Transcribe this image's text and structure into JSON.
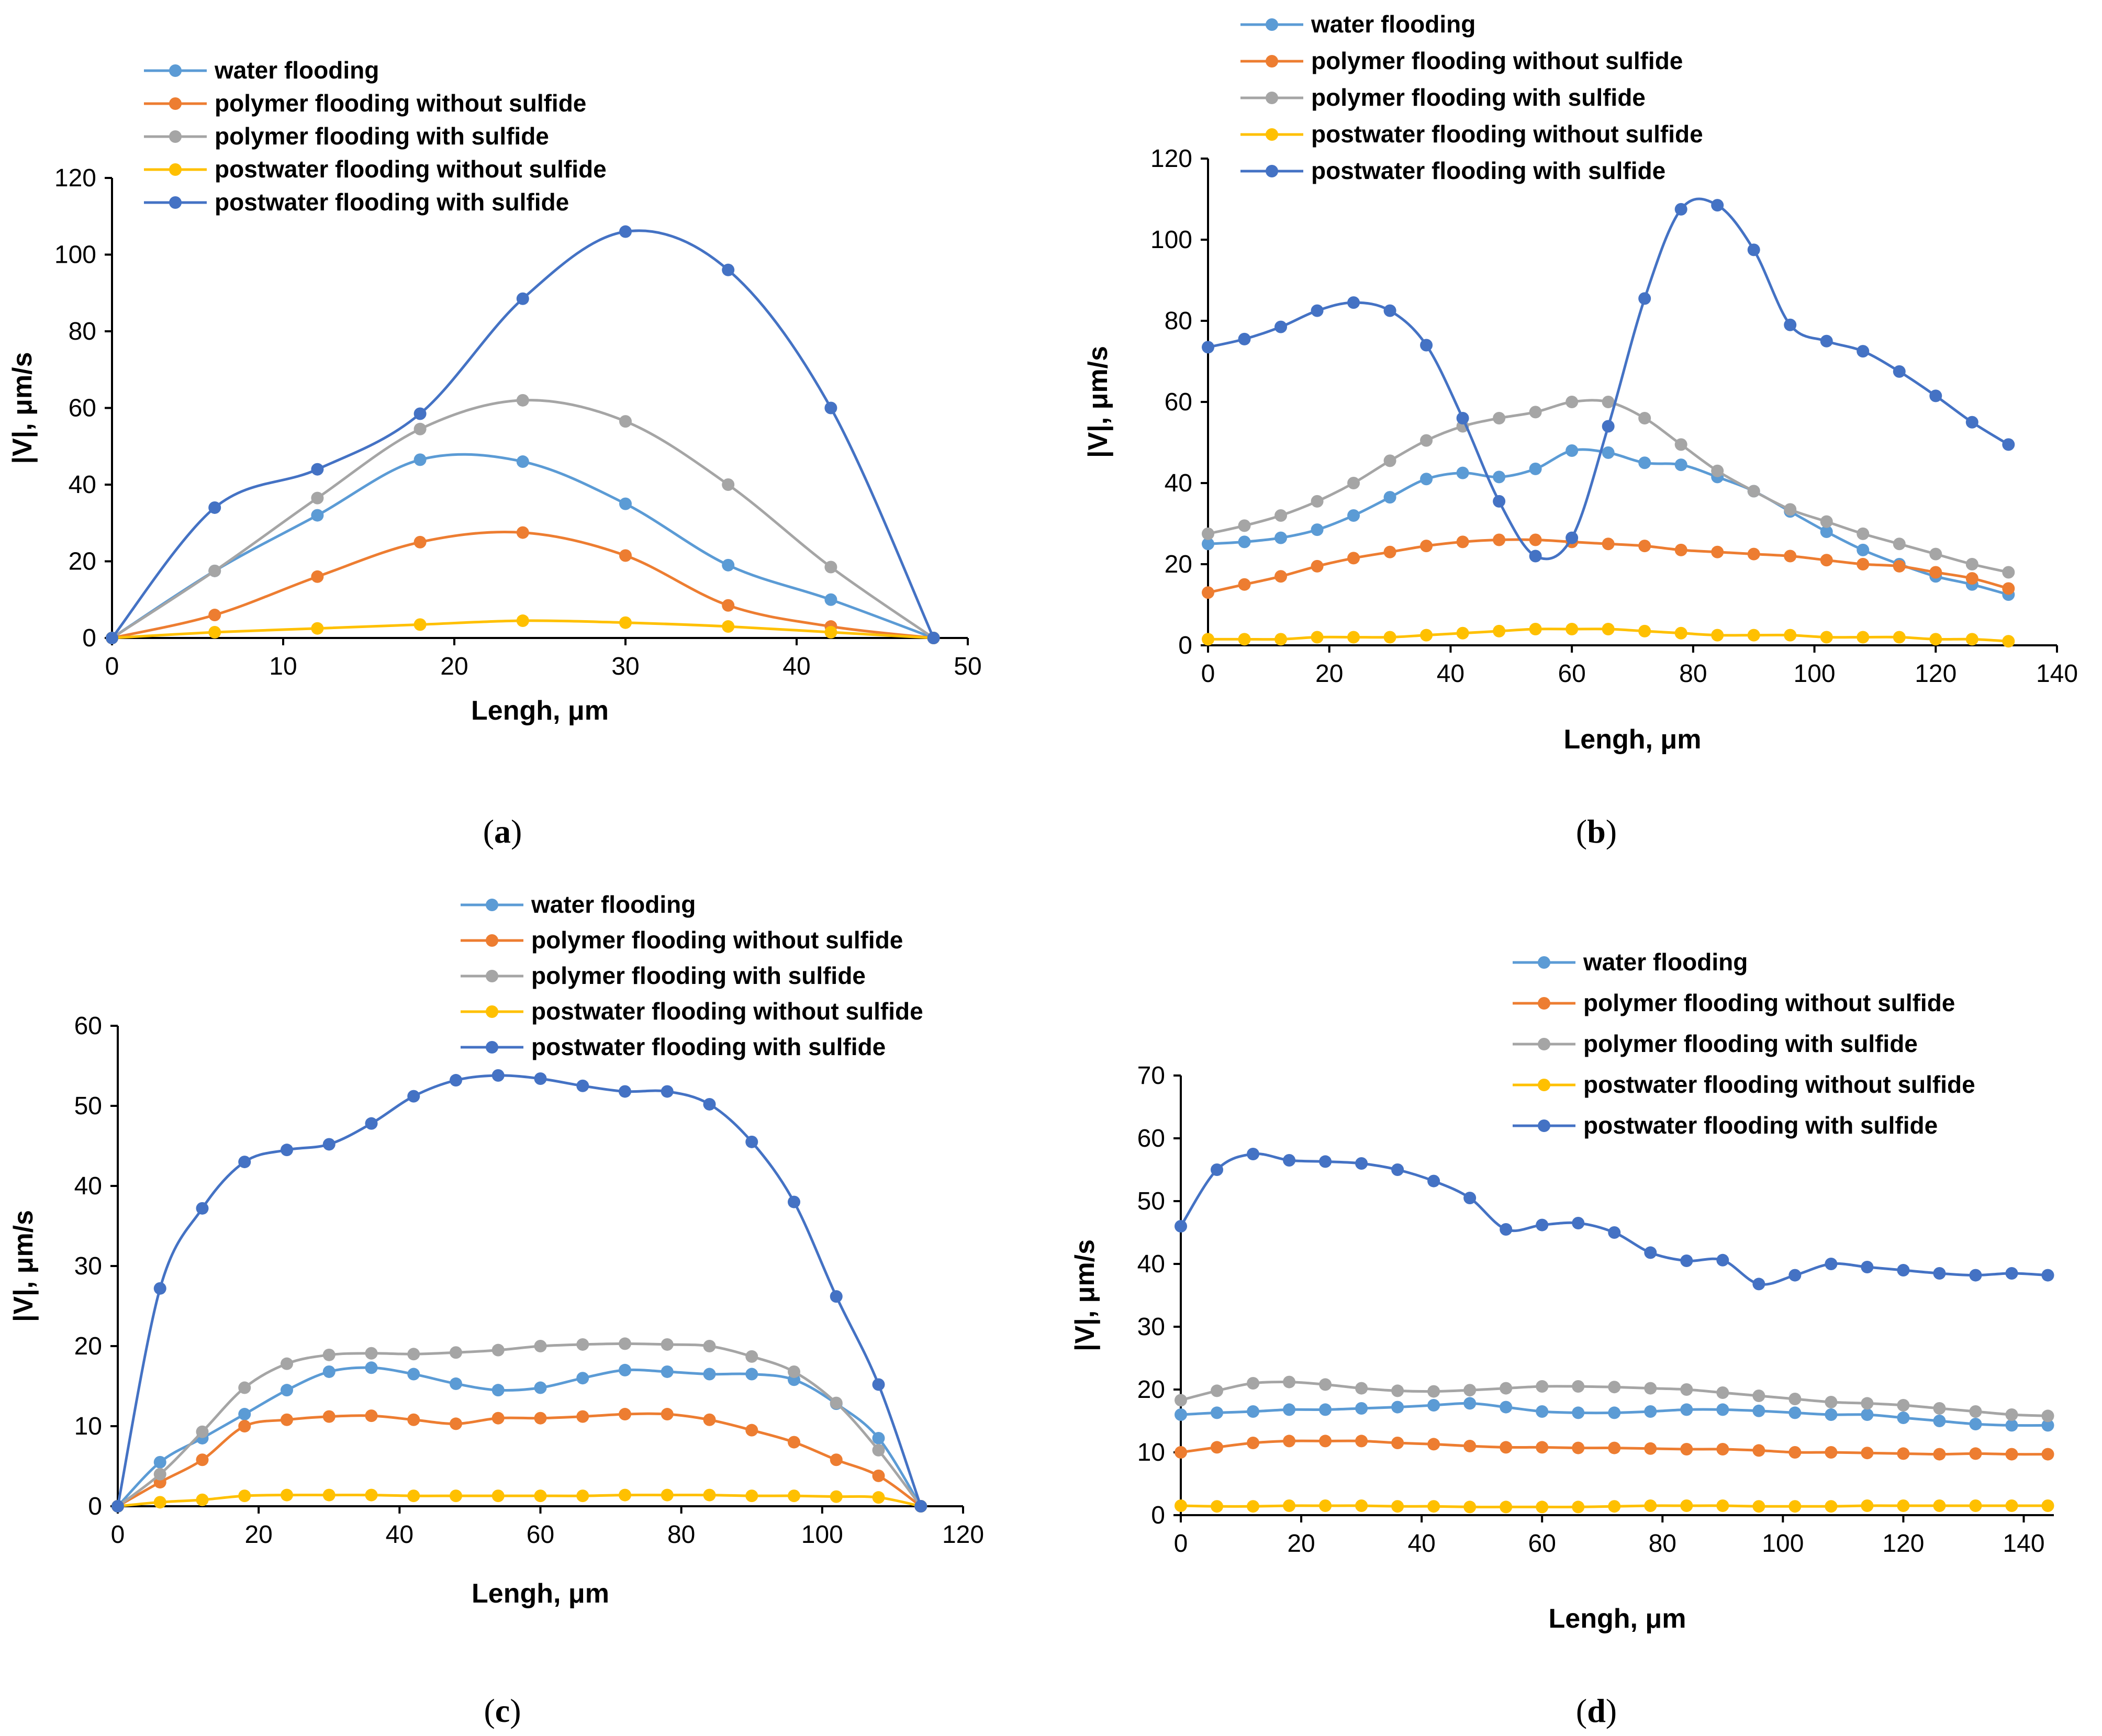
{
  "colors": {
    "water flooding": "#5B9BD5",
    "polymer flooding without sulfide": "#ED7D31",
    "polymer flooding with sulfide": "#A5A5A5",
    "postwater flooding without sulfide": "#FFC000",
    "postwater flooding with sulfide": "#4472C4"
  },
  "chart_data": [
    {
      "panel": "a",
      "type": "line",
      "xlabel": "Lengh, μm",
      "ylabel": "|V|, μm/s",
      "xlim": [
        0,
        50
      ],
      "ylim": [
        0,
        120
      ],
      "xticks": [
        0,
        10,
        20,
        30,
        40,
        50
      ],
      "yticks": [
        0,
        20,
        40,
        60,
        80,
        100,
        120
      ],
      "x": [
        0,
        6,
        12,
        18,
        24,
        30,
        36,
        42,
        48
      ],
      "series": [
        {
          "name": "water flooding",
          "values": [
            0,
            17.5,
            32,
            46.5,
            46,
            35,
            19,
            10,
            0
          ]
        },
        {
          "name": "polymer flooding without sulfide",
          "values": [
            0,
            6,
            16,
            25,
            27.5,
            21.5,
            8.5,
            3,
            0
          ]
        },
        {
          "name": "polymer flooding with sulfide",
          "values": [
            0,
            17.5,
            36.5,
            54.5,
            62,
            56.5,
            40,
            18.5,
            0
          ]
        },
        {
          "name": "postwater flooding without sulfide",
          "values": [
            0,
            1.5,
            2.5,
            3.5,
            4.5,
            4,
            3,
            1.5,
            0
          ]
        },
        {
          "name": "postwater flooding with sulfide",
          "values": [
            0,
            34,
            44,
            58.5,
            88.5,
            106,
            96,
            60,
            0
          ]
        }
      ]
    },
    {
      "panel": "b",
      "type": "line",
      "xlabel": "Lengh, μm",
      "ylabel": "|V|, μm/s",
      "xlim": [
        0,
        140
      ],
      "ylim": [
        0,
        120
      ],
      "xticks": [
        0,
        20,
        40,
        60,
        80,
        100,
        120,
        140
      ],
      "yticks": [
        0,
        20,
        40,
        60,
        80,
        100,
        120
      ],
      "x": [
        0,
        6,
        12,
        18,
        24,
        30,
        36,
        42,
        48,
        54,
        60,
        66,
        72,
        78,
        84,
        90,
        96,
        102,
        108,
        114,
        120,
        126,
        132
      ],
      "series": [
        {
          "name": "water flooding",
          "values": [
            25,
            25.5,
            26.5,
            28.5,
            32,
            36.5,
            41,
            42.5,
            41.5,
            43.5,
            48,
            47.5,
            45,
            44.5,
            41.5,
            38,
            33,
            28,
            23.5,
            20,
            17,
            15,
            12.5
          ]
        },
        {
          "name": "polymer flooding without sulfide",
          "values": [
            13,
            15,
            17,
            19.5,
            21.5,
            23,
            24.5,
            25.5,
            26,
            26,
            25.5,
            25,
            24.5,
            23.5,
            23,
            22.5,
            22,
            21,
            20,
            19.5,
            18,
            16.5,
            14
          ]
        },
        {
          "name": "polymer flooding with sulfide",
          "values": [
            27.5,
            29.5,
            32,
            35.5,
            40,
            45.5,
            50.5,
            54,
            56,
            57.5,
            60,
            60,
            56,
            49.5,
            43,
            38,
            33.5,
            30.5,
            27.5,
            25,
            22.5,
            20,
            18
          ]
        },
        {
          "name": "postwater flooding without sulfide",
          "values": [
            1.5,
            1.5,
            1.5,
            2,
            2,
            2,
            2.5,
            3,
            3.5,
            4,
            4,
            4,
            3.5,
            3,
            2.5,
            2.5,
            2.5,
            2,
            2,
            2,
            1.5,
            1.5,
            1
          ]
        },
        {
          "name": "postwater flooding with sulfide",
          "values": [
            73.5,
            75.5,
            78.5,
            82.5,
            84.5,
            82.5,
            74,
            56,
            35.5,
            22,
            26.5,
            54,
            85.5,
            107.5,
            108.5,
            97.5,
            79,
            75,
            72.5,
            67.5,
            61.5,
            55,
            49.5
          ]
        }
      ]
    },
    {
      "panel": "c",
      "type": "line",
      "xlabel": "Lengh, μm",
      "ylabel": "|V|, μm/s",
      "xlim": [
        0,
        120
      ],
      "ylim": [
        0,
        60
      ],
      "xticks": [
        0,
        20,
        40,
        60,
        80,
        100,
        120
      ],
      "yticks": [
        0,
        10,
        20,
        30,
        40,
        50,
        60
      ],
      "x": [
        0,
        6,
        12,
        18,
        24,
        30,
        36,
        42,
        48,
        54,
        60,
        66,
        72,
        78,
        84,
        90,
        96,
        102,
        108,
        114
      ],
      "series": [
        {
          "name": "water flooding",
          "values": [
            0,
            5.5,
            8.5,
            11.5,
            14.5,
            16.8,
            17.3,
            16.5,
            15.3,
            14.5,
            14.8,
            16,
            17,
            16.8,
            16.5,
            16.5,
            15.8,
            12.8,
            8.5,
            0
          ]
        },
        {
          "name": "polymer flooding without sulfide",
          "values": [
            0,
            3,
            5.8,
            10,
            10.8,
            11.2,
            11.3,
            10.8,
            10.3,
            11,
            11,
            11.2,
            11.5,
            11.5,
            10.8,
            9.5,
            8,
            5.8,
            3.8,
            0
          ]
        },
        {
          "name": "polymer flooding with sulfide",
          "values": [
            0,
            4,
            9.3,
            14.8,
            17.8,
            18.9,
            19.1,
            19,
            19.2,
            19.5,
            20,
            20.2,
            20.3,
            20.2,
            20,
            18.7,
            16.8,
            12.9,
            7,
            0
          ]
        },
        {
          "name": "postwater flooding without sulfide",
          "values": [
            0,
            0.5,
            0.8,
            1.3,
            1.4,
            1.4,
            1.4,
            1.3,
            1.3,
            1.3,
            1.3,
            1.3,
            1.4,
            1.4,
            1.4,
            1.3,
            1.3,
            1.2,
            1.1,
            0
          ]
        },
        {
          "name": "postwater flooding with sulfide",
          "values": [
            0,
            27.2,
            37.2,
            43,
            44.5,
            45.2,
            47.8,
            51.2,
            53.2,
            53.8,
            53.4,
            52.5,
            51.8,
            51.8,
            50.2,
            45.5,
            38,
            26.2,
            15.2,
            0
          ]
        }
      ]
    },
    {
      "panel": "d",
      "type": "line",
      "xlabel": "Lengh, μm",
      "ylabel": "|V|, μm/s",
      "xlim": [
        0,
        145
      ],
      "ylim": [
        0,
        70
      ],
      "xticks": [
        0,
        20,
        40,
        60,
        80,
        100,
        120,
        140
      ],
      "yticks": [
        0,
        10,
        20,
        30,
        40,
        50,
        60,
        70
      ],
      "x": [
        0,
        6,
        12,
        18,
        24,
        30,
        36,
        42,
        48,
        54,
        60,
        66,
        72,
        78,
        84,
        90,
        96,
        102,
        108,
        114,
        120,
        126,
        132,
        138,
        144
      ],
      "series": [
        {
          "name": "water flooding",
          "values": [
            16,
            16.3,
            16.5,
            16.8,
            16.8,
            17,
            17.2,
            17.5,
            17.8,
            17.2,
            16.5,
            16.3,
            16.3,
            16.5,
            16.8,
            16.8,
            16.6,
            16.3,
            16,
            16,
            15.5,
            15,
            14.5,
            14.3,
            14.3
          ]
        },
        {
          "name": "polymer flooding without sulfide",
          "values": [
            10,
            10.8,
            11.5,
            11.8,
            11.8,
            11.8,
            11.5,
            11.3,
            11,
            10.8,
            10.8,
            10.7,
            10.7,
            10.6,
            10.5,
            10.5,
            10.3,
            10,
            10,
            9.9,
            9.8,
            9.7,
            9.8,
            9.7,
            9.7
          ]
        },
        {
          "name": "polymer flooding with sulfide",
          "values": [
            18.3,
            19.8,
            21,
            21.2,
            20.8,
            20.2,
            19.8,
            19.7,
            19.9,
            20.2,
            20.5,
            20.5,
            20.4,
            20.2,
            20,
            19.5,
            19,
            18.5,
            18,
            17.8,
            17.5,
            17,
            16.5,
            16,
            15.8
          ]
        },
        {
          "name": "postwater flooding without sulfide",
          "values": [
            1.5,
            1.4,
            1.4,
            1.5,
            1.5,
            1.5,
            1.4,
            1.4,
            1.3,
            1.3,
            1.3,
            1.3,
            1.4,
            1.5,
            1.5,
            1.5,
            1.4,
            1.4,
            1.4,
            1.5,
            1.5,
            1.5,
            1.5,
            1.5,
            1.5
          ]
        },
        {
          "name": "postwater flooding with sulfide",
          "values": [
            46,
            55,
            57.5,
            56.5,
            56.3,
            56,
            55,
            53.2,
            50.5,
            45.5,
            46.2,
            46.5,
            45,
            41.8,
            40.5,
            40.6,
            36.8,
            38.2,
            40,
            39.5,
            39,
            38.5,
            38.2,
            38.5,
            38.2
          ]
        }
      ]
    }
  ]
}
